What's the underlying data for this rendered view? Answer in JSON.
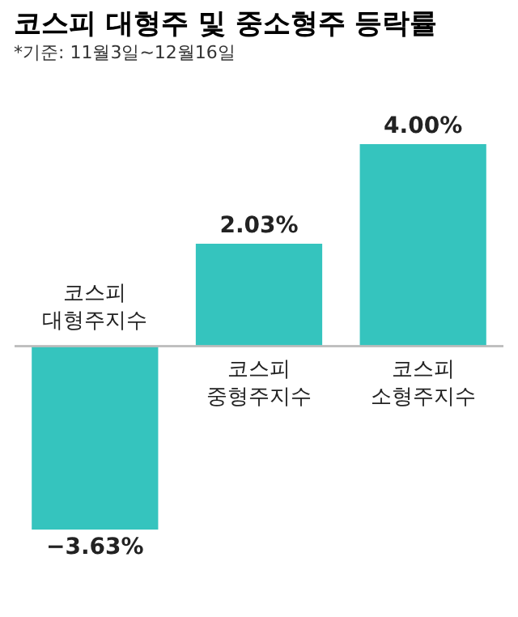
{
  "chart_data": {
    "type": "bar",
    "title": "코스피 대형주 및 중소형주 등락률",
    "subtitle": "*기준: 11월3일~12월16일",
    "categories": [
      "코스피\n대형주지수",
      "코스피\n중형주지수",
      "코스피\n소형주지수"
    ],
    "values": [
      -3.63,
      2.03,
      4.0
    ],
    "color": "#35c4be",
    "value_labels": [
      "−3.63%",
      "2.03%",
      "4.00%"
    ]
  }
}
